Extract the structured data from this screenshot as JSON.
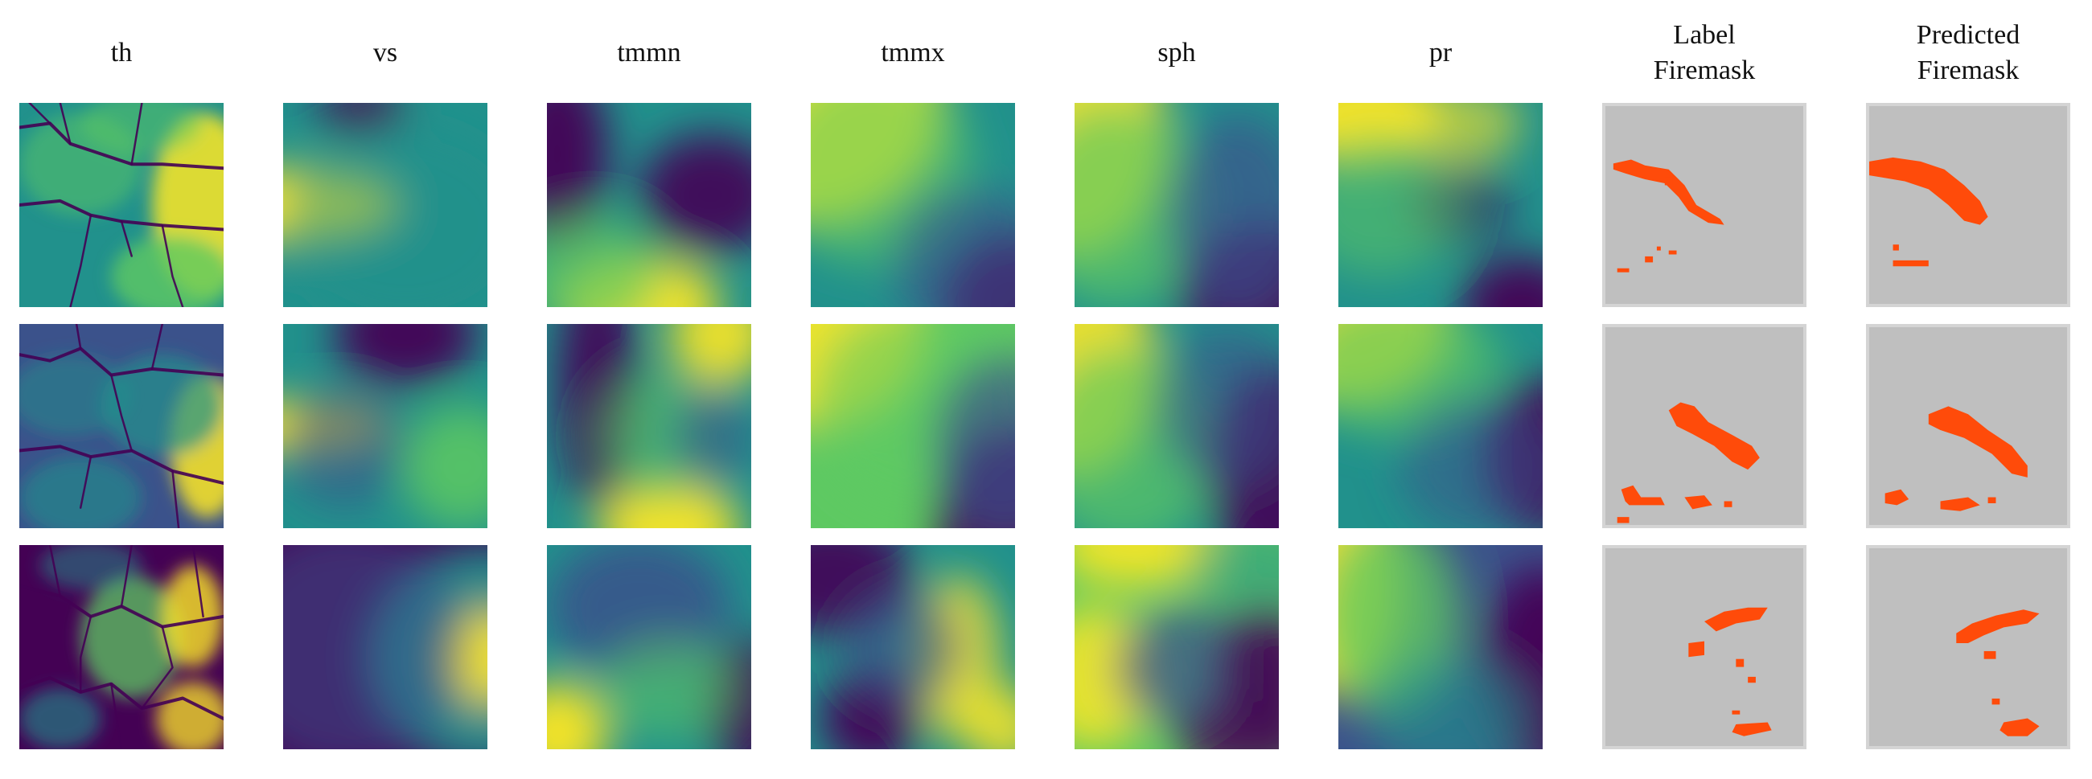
{
  "figure": {
    "columns": [
      {
        "key": "th",
        "title_lines": [
          "th"
        ],
        "panel_type": "field"
      },
      {
        "key": "vs",
        "title_lines": [
          "vs"
        ],
        "panel_type": "field"
      },
      {
        "key": "tmmn",
        "title_lines": [
          "tmmn"
        ],
        "panel_type": "field"
      },
      {
        "key": "tmmx",
        "title_lines": [
          "tmmx"
        ],
        "panel_type": "field"
      },
      {
        "key": "sph",
        "title_lines": [
          "sph"
        ],
        "panel_type": "field"
      },
      {
        "key": "pr",
        "title_lines": [
          "pr"
        ],
        "panel_type": "field"
      },
      {
        "key": "label",
        "title_lines": [
          "Label",
          "Firemask"
        ],
        "panel_type": "mask"
      },
      {
        "key": "predicted",
        "title_lines": [
          "Predicted",
          "Firemask"
        ],
        "panel_type": "mask"
      }
    ],
    "rows": 3,
    "colormap": [
      "#440154",
      "#3b528b",
      "#21918c",
      "#5ec962",
      "#fde725"
    ],
    "mask_colors": {
      "fire": "#ff4b0a",
      "background": "#bfbfbf"
    }
  }
}
